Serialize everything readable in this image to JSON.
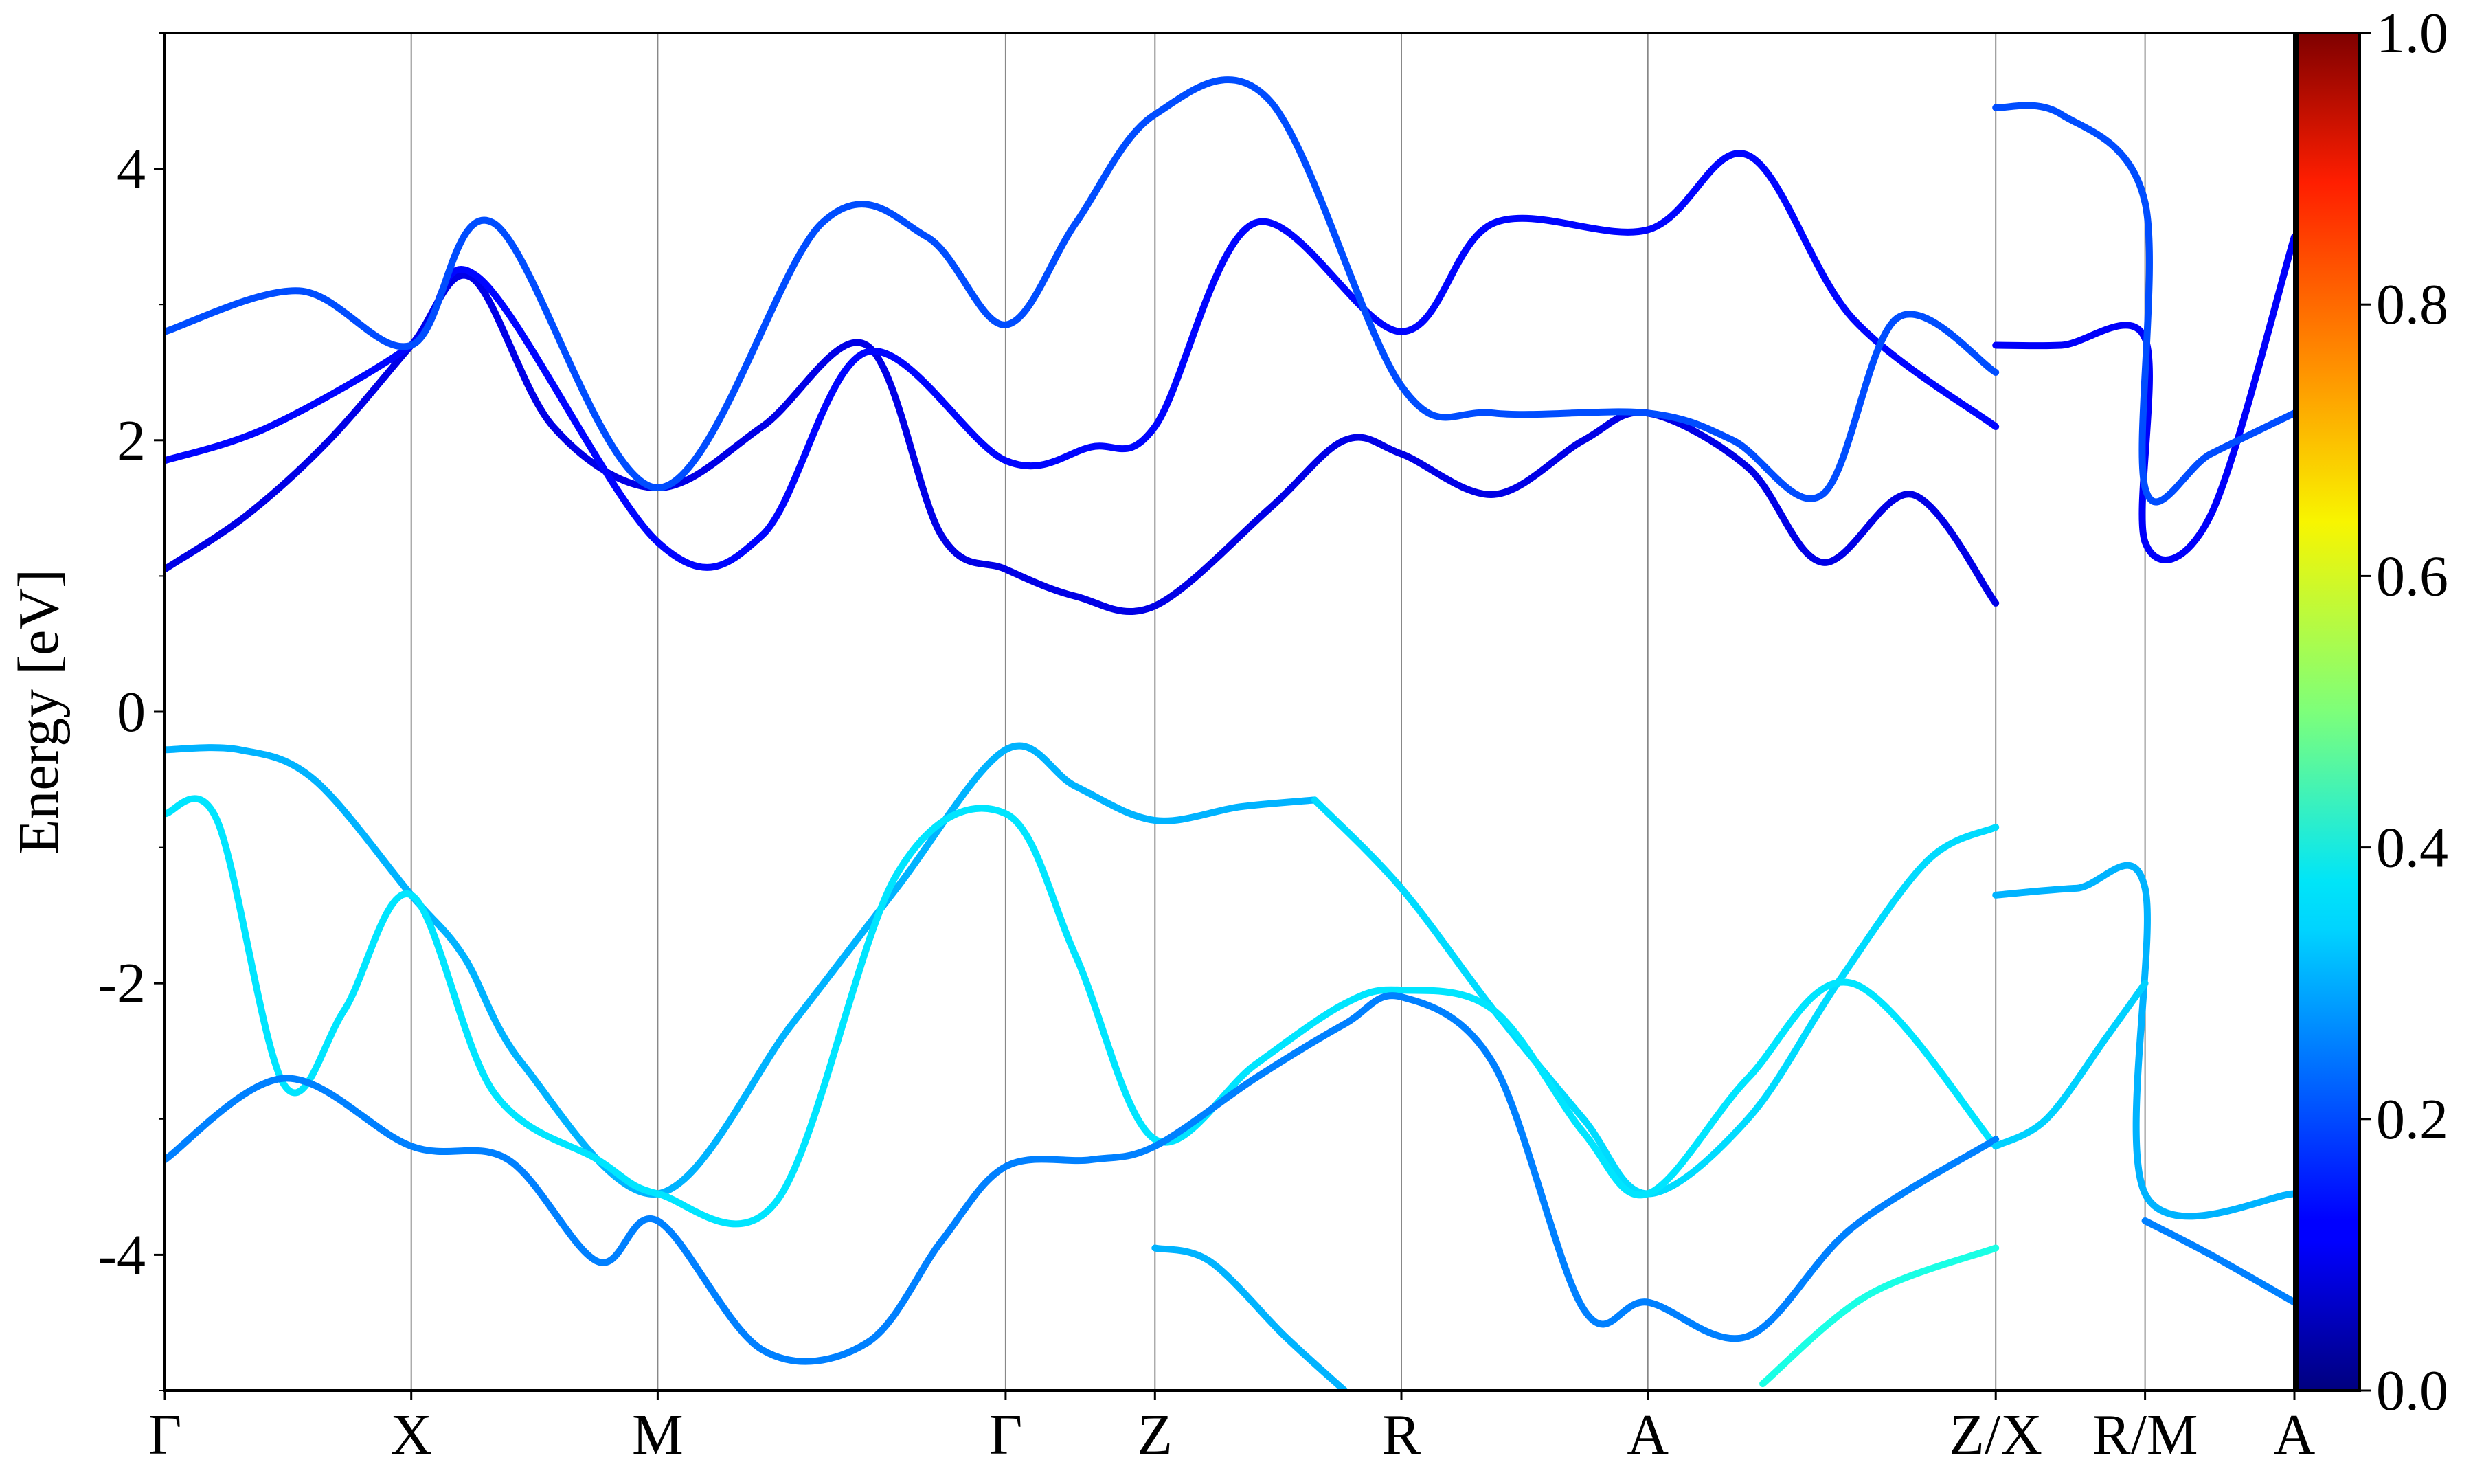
{
  "chart_data": {
    "type": "line",
    "ylabel": "Energy [eV]",
    "ylim": [
      -5,
      5
    ],
    "yticks": [
      -4,
      -2,
      0,
      2,
      4
    ],
    "ytick_labels": [
      "-4",
      "-2",
      "0",
      "2",
      "4"
    ],
    "x_range": [
      0,
      14.2
    ],
    "kpoints": [
      {
        "label": "Γ",
        "x": 0
      },
      {
        "label": "X",
        "x": 1.65
      },
      {
        "label": "M",
        "x": 3.3
      },
      {
        "label": "Γ",
        "x": 5.63
      },
      {
        "label": "Z",
        "x": 6.63
      },
      {
        "label": "R",
        "x": 8.28
      },
      {
        "label": "A",
        "x": 9.93
      },
      {
        "label": "Z/X",
        "x": 12.26
      },
      {
        "label": "R/M",
        "x": 13.26
      },
      {
        "label": "A",
        "x": 14.26
      }
    ],
    "colorbar": {
      "range": [
        0,
        1
      ],
      "ticks": [
        0,
        0.2,
        0.4,
        0.6,
        0.8,
        1
      ],
      "tick_labels": [
        "0.0",
        "0.2",
        "0.4",
        "0.6",
        "0.8",
        "1.0"
      ],
      "colormap": "jet"
    },
    "series": [
      {
        "weight": 0.1,
        "x": [
          0,
          0.55,
          1.1,
          1.65,
          2.05,
          2.6,
          3.3,
          4.0,
          4.7,
          5.2,
          5.63,
          6.1,
          6.63,
          7.4,
          7.9,
          8.28,
          8.9,
          9.5,
          9.93,
          10.6,
          11.1,
          11.7,
          12.26
        ],
        "y": [
          1.05,
          1.45,
          2.0,
          2.7,
          3.2,
          2.1,
          1.65,
          2.1,
          2.7,
          1.3,
          1.05,
          0.85,
          0.78,
          1.5,
          2.0,
          1.9,
          1.6,
          2.0,
          2.2,
          1.8,
          1.1,
          1.6,
          0.8
        ]
      },
      {
        "weight": 0.13,
        "x": [
          0,
          0.7,
          1.65,
          2.1,
          3.3,
          4.0,
          4.7,
          5.63,
          6.2,
          6.63,
          7.3,
          8.28,
          8.9,
          9.93,
          10.6,
          11.3,
          12.26
        ],
        "y": [
          1.85,
          2.1,
          2.7,
          3.2,
          1.25,
          1.3,
          2.65,
          1.85,
          1.95,
          2.1,
          3.6,
          2.8,
          3.6,
          3.55,
          4.1,
          2.9,
          2.1
        ]
      },
      {
        "weight": 0.2,
        "x": [
          0,
          0.9,
          1.65,
          2.2,
          3.3,
          4.4,
          5.1,
          5.63,
          6.1,
          6.63,
          7.4,
          8.28,
          8.9,
          9.93,
          10.5,
          11.1,
          11.6,
          12.26
        ],
        "y": [
          2.8,
          3.1,
          2.7,
          3.6,
          1.65,
          3.6,
          3.5,
          2.85,
          3.6,
          4.4,
          4.5,
          2.4,
          2.2,
          2.2,
          2.0,
          1.6,
          2.9,
          2.5
        ]
      },
      {
        "weight": 0.3,
        "x": [
          0,
          0.5,
          1.0,
          1.65,
          2.0,
          2.4,
          3.3,
          4.2,
          4.9,
          5.63,
          6.1,
          6.63,
          7.2,
          7.7
        ],
        "y": [
          -0.28,
          -0.28,
          -0.5,
          -1.35,
          -1.8,
          -2.6,
          -3.55,
          -2.3,
          -1.3,
          -0.28,
          -0.55,
          -0.8,
          -0.7,
          -0.65
        ]
      },
      {
        "weight": 0.34,
        "x": [
          7.7,
          8.28,
          8.9,
          9.5,
          9.93,
          10.6,
          11.2,
          11.8,
          12.26
        ],
        "y": [
          -0.65,
          -1.3,
          -2.2,
          -3.0,
          -3.55,
          -3.0,
          -2.0,
          -1.1,
          -0.85
        ]
      },
      {
        "weight": 0.35,
        "x": [
          0,
          0.35,
          0.8,
          1.2,
          1.65,
          2.2,
          2.9,
          3.3,
          4.1,
          4.9,
          5.63,
          6.1,
          6.63,
          7.3,
          7.9,
          8.28,
          8.9,
          9.5,
          9.93,
          10.6,
          11.3,
          12.26
        ],
        "y": [
          -0.75,
          -0.8,
          -2.75,
          -2.2,
          -1.35,
          -2.8,
          -3.3,
          -3.55,
          -3.6,
          -1.2,
          -0.75,
          -1.8,
          -3.15,
          -2.6,
          -2.15,
          -2.05,
          -2.2,
          -3.1,
          -3.55,
          -2.7,
          -2.0,
          -3.2
        ]
      },
      {
        "weight": 0.25,
        "x": [
          0,
          0.8,
          1.65,
          2.3,
          2.9,
          3.3,
          4.0,
          4.7,
          5.2,
          5.63,
          6.2,
          6.63,
          7.3,
          7.9,
          8.28,
          8.9,
          9.5,
          9.93,
          10.6,
          11.3,
          12.26
        ],
        "y": [
          -3.3,
          -2.7,
          -3.2,
          -3.3,
          -4.05,
          -3.75,
          -4.7,
          -4.65,
          -3.9,
          -3.35,
          -3.3,
          -3.2,
          -2.7,
          -2.3,
          -2.1,
          -2.6,
          -4.4,
          -4.35,
          -4.6,
          -3.8,
          -3.15
        ]
      },
      {
        "weight": 0.3,
        "x": [
          6.63,
          7.0,
          7.5,
          7.9
        ],
        "y": [
          -3.95,
          -4.05,
          -4.6,
          -5.0
        ]
      },
      {
        "weight": 0.4,
        "x": [
          10.7,
          11.4,
          12.26
        ],
        "y": [
          -4.95,
          -4.3,
          -3.95
        ]
      },
      {
        "weight": 0.3,
        "x": [
          12.26,
          12.8,
          13.26,
          13.26,
          14.26
        ],
        "y": [
          -1.35,
          -1.3,
          -1.3,
          -3.55,
          -3.55
        ]
      },
      {
        "weight": 0.33,
        "x": [
          12.26,
          12.6,
          13.0,
          13.26
        ],
        "y": [
          -3.2,
          -3.0,
          -2.4,
          -2.0
        ]
      },
      {
        "weight": 0.25,
        "x": [
          13.26,
          13.7,
          14.26
        ],
        "y": [
          -3.75,
          -4.0,
          -4.35
        ]
      },
      {
        "weight": 0.12,
        "x": [
          12.26,
          12.7,
          13.26,
          13.26,
          13.7,
          14.26
        ],
        "y": [
          2.7,
          2.7,
          2.75,
          1.25,
          1.45,
          3.5
        ]
      },
      {
        "weight": 0.2,
        "x": [
          12.26,
          12.7,
          13.26,
          13.26,
          13.7,
          14.26
        ],
        "y": [
          4.45,
          4.4,
          3.75,
          1.65,
          1.9,
          2.2
        ]
      }
    ]
  }
}
